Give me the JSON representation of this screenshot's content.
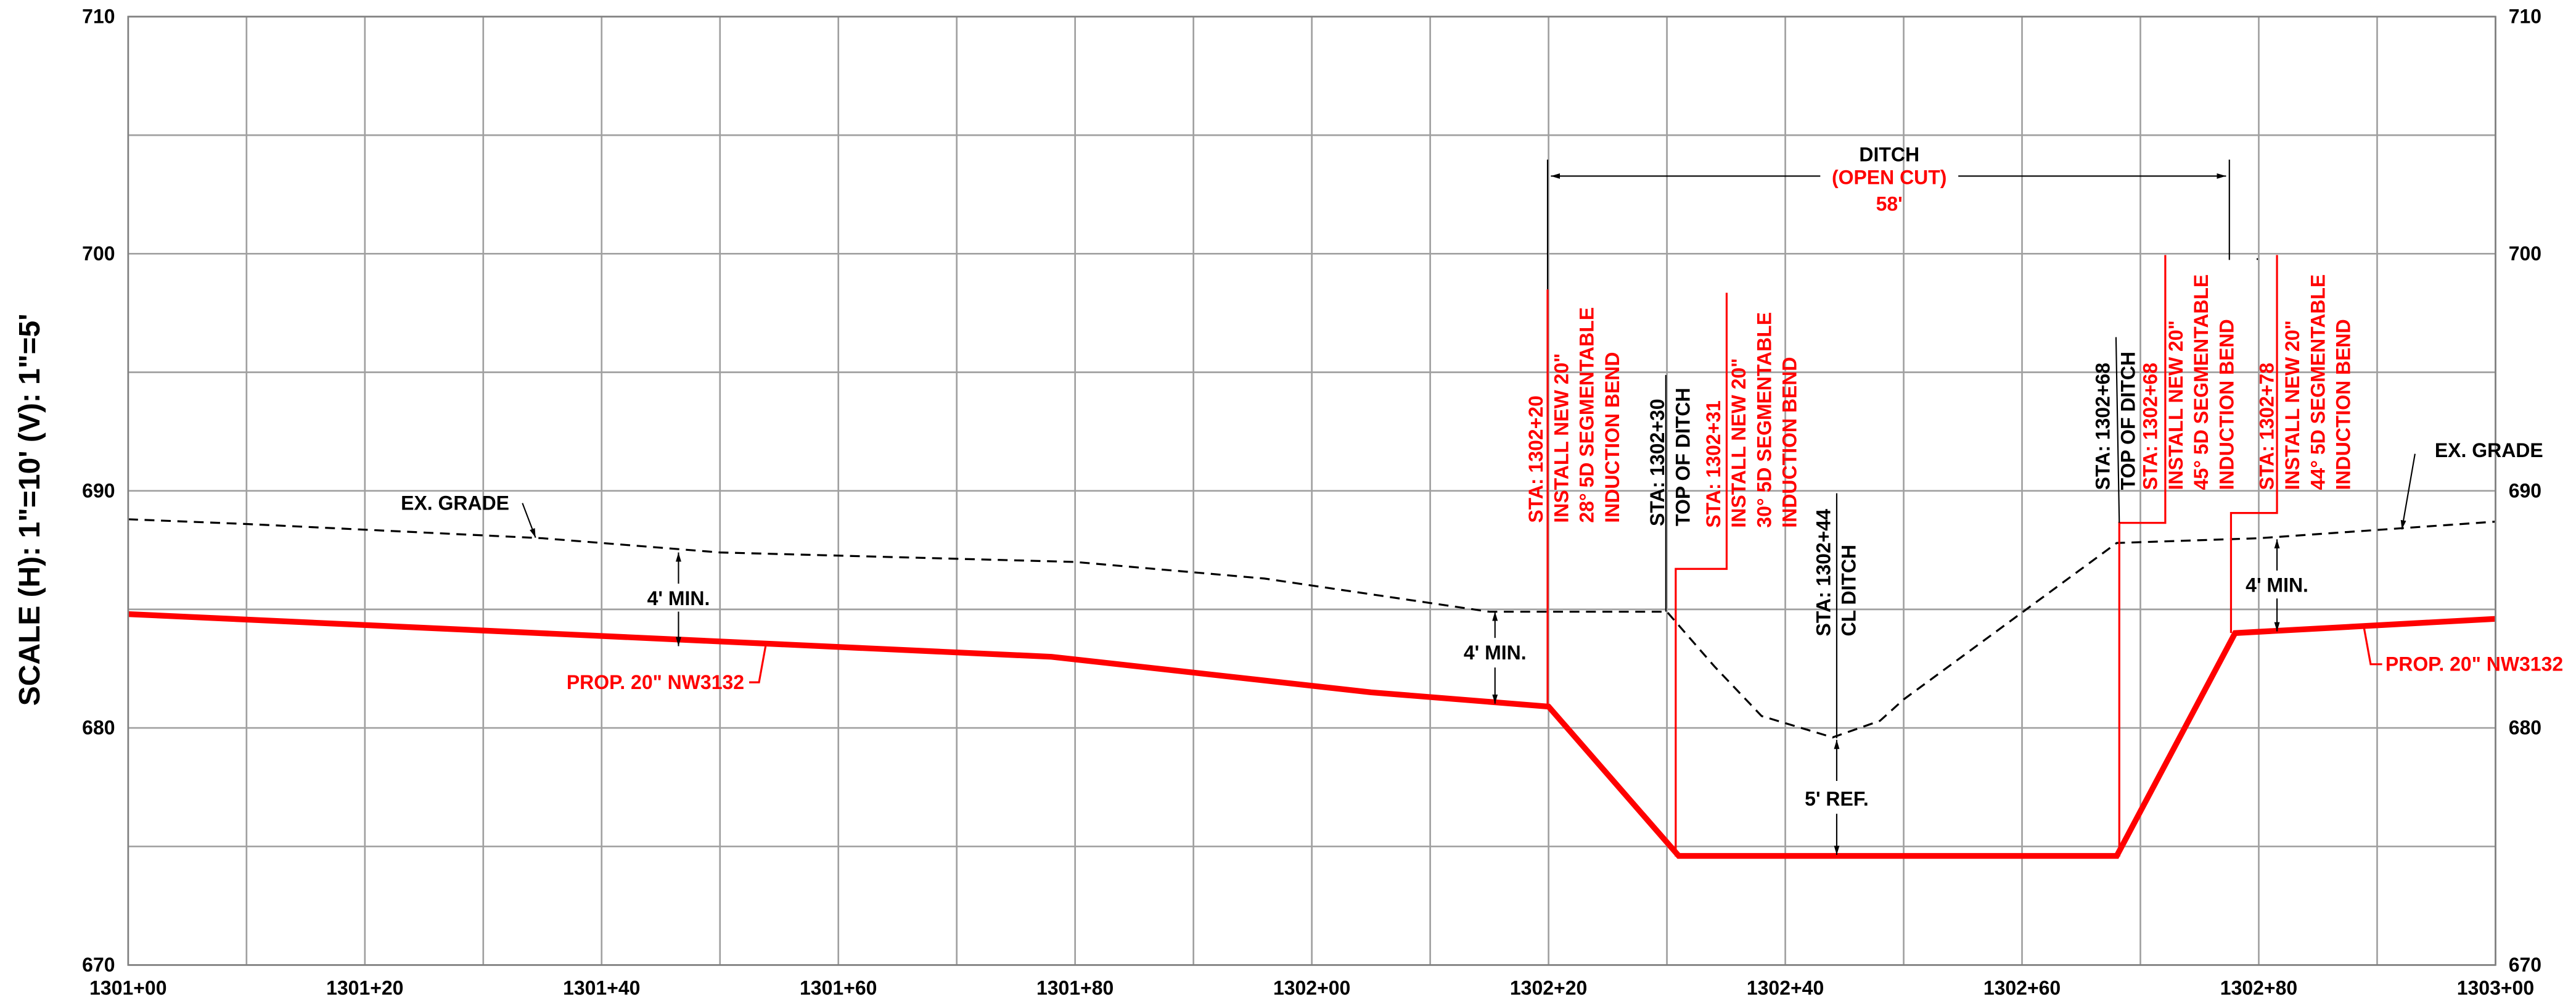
{
  "chart_data": {
    "type": "line",
    "ylabel": "SCALE (H): 1\"=10' (V): 1\"=5'",
    "xlim": [
      130100,
      130300
    ],
    "xticks": [
      {
        "value": 130100,
        "label": "1301+00"
      },
      {
        "value": 130120,
        "label": "1301+20"
      },
      {
        "value": 130140,
        "label": "1301+40"
      },
      {
        "value": 130160,
        "label": "1301+60"
      },
      {
        "value": 130180,
        "label": "1301+80"
      },
      {
        "value": 130200,
        "label": "1302+00"
      },
      {
        "value": 130220,
        "label": "1302+20"
      },
      {
        "value": 130240,
        "label": "1302+40"
      },
      {
        "value": 130260,
        "label": "1302+60"
      },
      {
        "value": 130280,
        "label": "1302+80"
      },
      {
        "value": 130300,
        "label": "1303+00"
      }
    ],
    "xminor_ticks": [
      130110,
      130130,
      130150,
      130170,
      130190,
      130210,
      130230,
      130250,
      130270,
      130290
    ],
    "ylim": [
      670,
      710
    ],
    "yticks": [
      670,
      680,
      690,
      700,
      710
    ],
    "yminor_ticks": [
      675,
      685,
      695,
      705
    ],
    "grid": true,
    "series": [
      {
        "name": "PROP. 20\" NW3132",
        "color": "#ff0000",
        "dashed": false,
        "x": [
          130100,
          130178,
          130205,
          130220,
          130231,
          130268,
          130278,
          130300
        ],
        "values": [
          684.8,
          683.0,
          681.5,
          680.9,
          674.6,
          674.6,
          684.0,
          684.6
        ]
      },
      {
        "name": "EX. GRADE",
        "color": "#000000",
        "dashed": true,
        "x": [
          130100,
          130110,
          130135,
          130150,
          130180,
          130196,
          130215,
          130230,
          130234,
          130238,
          130244,
          130248,
          130250,
          130268,
          130280,
          130300
        ],
        "values": [
          688.8,
          688.6,
          688.0,
          687.4,
          687.0,
          686.3,
          684.9,
          684.9,
          682.6,
          680.5,
          679.6,
          680.3,
          681.2,
          687.8,
          688.0,
          688.7
        ]
      }
    ],
    "labels": {
      "ex_grade": "EX. GRADE",
      "min": "4' MIN.",
      "prop": "PROP. 20\" NW3132",
      "ref": "5' REF.",
      "ditch": [
        "DITCH",
        "(OPEN CUT)",
        "58'"
      ]
    },
    "annotations": [
      {
        "color": "#ff0000",
        "lines": [
          "STA: 1302+20",
          "INSTALL NEW 20\"",
          "28° 5D SEGMENTABLE",
          "INDUCTION BEND"
        ]
      },
      {
        "color": "#000000",
        "lines": [
          "STA: 1302+30",
          "TOP OF DITCH"
        ]
      },
      {
        "color": "#ff0000",
        "lines": [
          "STA: 1302+31",
          "INSTALL NEW 20\"",
          "30° 5D SEGMENTABLE",
          "INDUCTION BEND"
        ]
      },
      {
        "color": "#000000",
        "lines": [
          "STA: 1302+44",
          "CL DITCH"
        ]
      },
      {
        "color": "#000000",
        "lines": [
          "STA: 1302+68",
          "TOP OF DITCH"
        ]
      },
      {
        "color": "#ff0000",
        "lines": [
          "STA: 1302+68",
          "INSTALL NEW 20\"",
          "45° 5D SEGMENTABLE",
          "INDUCTION BEND"
        ]
      },
      {
        "color": "#ff0000",
        "lines": [
          "STA: 1302+78",
          "INSTALL NEW 20\"",
          "44° 5D SEGMENTABLE",
          "INDUCTION BEND"
        ]
      }
    ]
  }
}
